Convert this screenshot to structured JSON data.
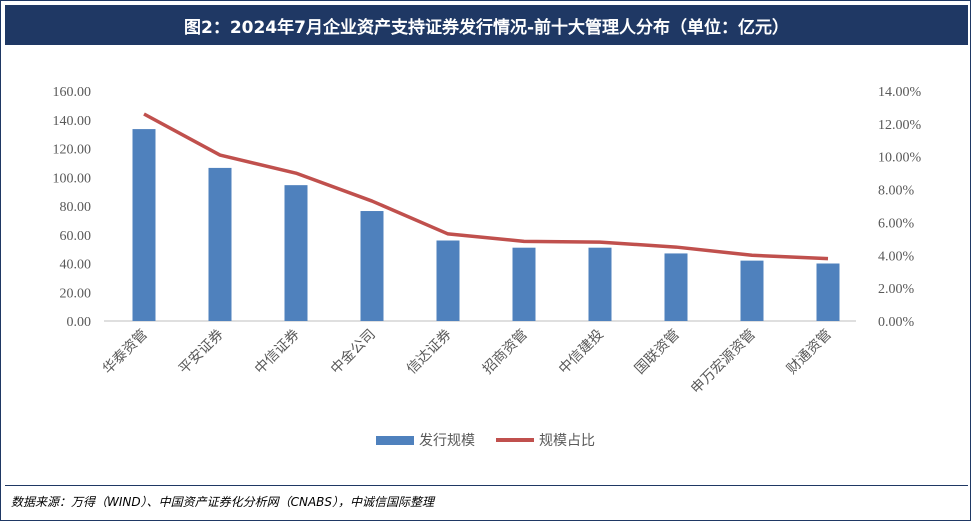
{
  "title": "图2：2024年7月企业资产支持证券发行情况-前十大管理人分布（单位：亿元）",
  "source": "数据来源：万得（WIND）、中国资产证券化分析网（CNABS），中诚信国际整理",
  "colors": {
    "bar": "#4f81bd",
    "line": "#c0504d",
    "axis": "#bfbfbf",
    "title_bg": "#1f3864"
  },
  "chart_data": {
    "type": "bar",
    "title": "图2：2024年7月企业资产支持证券发行情况-前十大管理人分布（单位：亿元）",
    "categories": [
      "华泰资管",
      "平安证券",
      "中信证券",
      "中金公司",
      "信达证券",
      "招商资管",
      "中信建投",
      "国联资管",
      "申万宏源资管",
      "财通资管"
    ],
    "series": [
      {
        "name": "发行规模",
        "type": "bar",
        "axis": "left",
        "values": [
          133.5,
          106.5,
          94.5,
          76.5,
          56.0,
          51.0,
          51.0,
          47.0,
          42.0,
          40.0
        ]
      },
      {
        "name": "规模占比",
        "type": "line",
        "axis": "right",
        "values": [
          12.6,
          10.1,
          9.0,
          7.3,
          5.3,
          4.85,
          4.8,
          4.5,
          4.0,
          3.8
        ]
      }
    ],
    "y_left": {
      "lim": [
        0,
        160
      ],
      "ticks": [
        "0.00",
        "20.00",
        "40.00",
        "60.00",
        "80.00",
        "100.00",
        "120.00",
        "140.00",
        "160.00"
      ]
    },
    "y_right": {
      "lim": [
        0,
        14
      ],
      "ticks": [
        "0.00%",
        "2.00%",
        "4.00%",
        "6.00%",
        "8.00%",
        "10.00%",
        "12.00%",
        "14.00%"
      ]
    },
    "legend": [
      "发行规模",
      "规模占比"
    ],
    "legend_position": "bottom",
    "grid": false
  }
}
